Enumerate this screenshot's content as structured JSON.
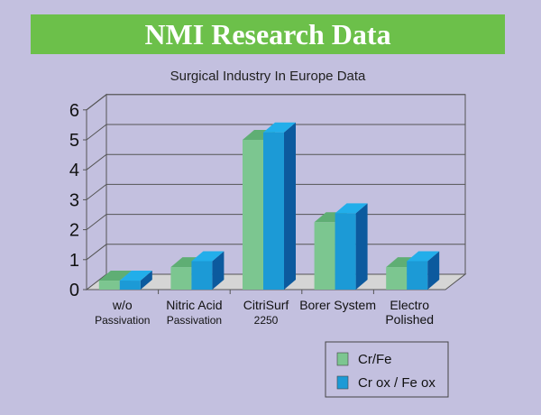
{
  "header": {
    "title": "NMI Research Data"
  },
  "chart_data": {
    "type": "bar",
    "title": "Surgical Industry In Europe Data",
    "categories": [
      {
        "line1": "w/o",
        "line2": "Passivation"
      },
      {
        "line1": "Nitric Acid",
        "line2": "Passivation"
      },
      {
        "line1": "CitriSurf",
        "line2": "2250"
      },
      {
        "line1": "Borer System",
        "line2": ""
      },
      {
        "line1": "Electro",
        "line2": "Polished"
      }
    ],
    "series": [
      {
        "name": "Cr/Fe",
        "values": [
          0.3,
          0.75,
          5.0,
          2.25,
          0.75
        ],
        "color": "#7cc690",
        "top_color": "#5fae74",
        "side_color": "#4f9a64"
      },
      {
        "name": "Cr ox / Fe ox",
        "values": [
          0.3,
          0.95,
          5.25,
          2.55,
          0.95
        ],
        "color": "#1c9ad6",
        "top_color": "#22aeea",
        "side_color": "#0c5a9e"
      }
    ],
    "ylim": [
      0,
      6
    ],
    "yticks": [
      "0",
      "1",
      "2",
      "3",
      "4",
      "5",
      "6"
    ],
    "grid": true,
    "legend": "bottom-right",
    "three_d": true
  }
}
